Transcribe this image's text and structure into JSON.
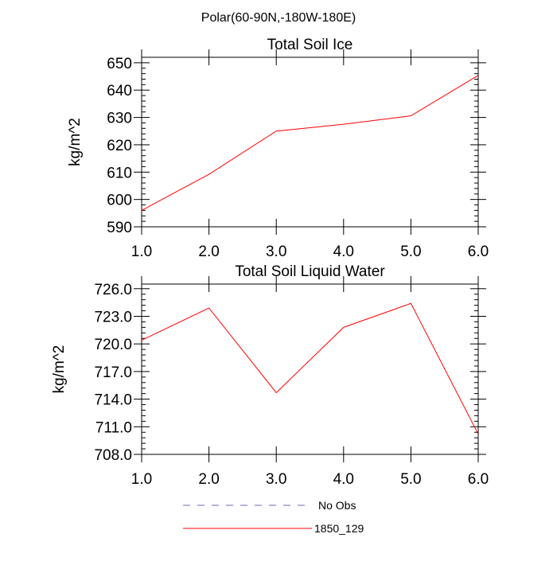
{
  "page_title": "Polar(60-90N,-180W-180E)",
  "colors": {
    "series": "#ff0000",
    "obs": "#6b6bb5",
    "axis": "#000000"
  },
  "legend": {
    "placement": "bottom-center",
    "entries": [
      {
        "label": "No Obs",
        "style": "dashed",
        "color": "#6b6bb5"
      },
      {
        "label": "1850_129",
        "style": "solid",
        "color": "#ff0000"
      }
    ]
  },
  "chart_data": [
    {
      "type": "line",
      "title": "Total Soil Ice",
      "xlabel": "",
      "ylabel": "kg/m^2",
      "x": [
        1,
        2,
        3,
        4,
        5,
        6
      ],
      "xlim": [
        1,
        6
      ],
      "ylim": [
        590,
        652
      ],
      "xticks": [
        1,
        2,
        3,
        4,
        5,
        6
      ],
      "xtick_labels": [
        "1.0",
        "2.0",
        "3.0",
        "4.0",
        "5.0",
        "6.0"
      ],
      "yticks": [
        590,
        600,
        610,
        620,
        630,
        640,
        650
      ],
      "ytick_labels": [
        "590",
        "600",
        "610",
        "620",
        "630",
        "640",
        "650"
      ],
      "grid": false,
      "series": [
        {
          "name": "1850_129",
          "color": "#ff0000",
          "values": [
            596.0,
            609.2,
            625.0,
            627.5,
            630.6,
            645.4
          ]
        }
      ]
    },
    {
      "type": "line",
      "title": "Total Soil Liquid Water",
      "xlabel": "",
      "ylabel": "kg/m^2",
      "x": [
        1,
        2,
        3,
        4,
        5,
        6
      ],
      "xlim": [
        1,
        6
      ],
      "ylim": [
        708,
        726.5
      ],
      "xticks": [
        1,
        2,
        3,
        4,
        5,
        6
      ],
      "xtick_labels": [
        "1.0",
        "2.0",
        "3.0",
        "4.0",
        "5.0",
        "6.0"
      ],
      "yticks": [
        708,
        711,
        714,
        717,
        720,
        723,
        726
      ],
      "ytick_labels": [
        "708.0",
        "711.0",
        "714.0",
        "717.0",
        "720.0",
        "723.0",
        "726.0"
      ],
      "grid": false,
      "series": [
        {
          "name": "1850_129",
          "color": "#ff0000",
          "values": [
            720.4,
            723.9,
            714.7,
            721.8,
            724.4,
            710.2
          ]
        }
      ]
    }
  ]
}
